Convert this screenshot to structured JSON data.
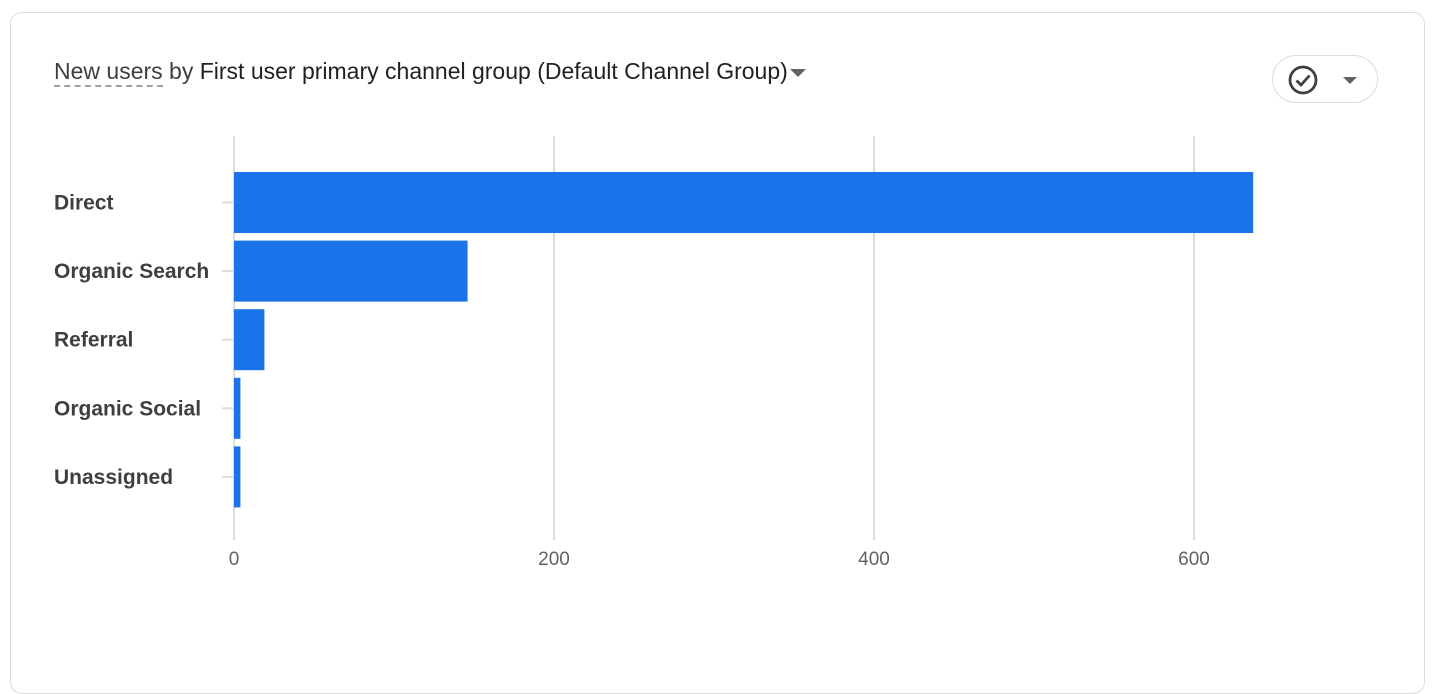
{
  "header": {
    "metric": "New users",
    "by": "by",
    "dimension": "First user primary channel group (Default Channel Group)"
  },
  "controls": {
    "compare_icon": "check-circle-icon",
    "dropdown_icon": "caret-down-icon"
  },
  "chart_data": {
    "type": "bar",
    "orientation": "horizontal",
    "title": "New users by First user primary channel group (Default Channel Group)",
    "categories": [
      "Direct",
      "Organic Search",
      "Referral",
      "Organic Social",
      "Unassigned"
    ],
    "values": [
      637,
      146,
      19,
      4,
      4
    ],
    "xlabel": "",
    "ylabel": "",
    "xlim": [
      0,
      700
    ],
    "xticks": [
      "0",
      "200",
      "400",
      "600"
    ],
    "grid": true,
    "bar_color": "#1a73e8"
  }
}
